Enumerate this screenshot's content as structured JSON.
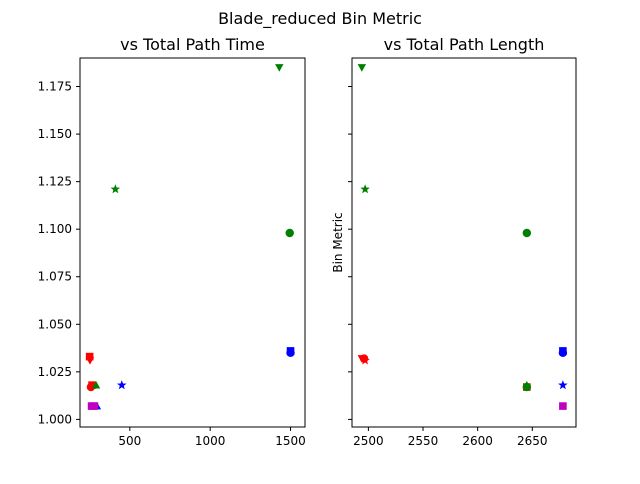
{
  "suptitle": "Blade_reduced Bin Metric",
  "colors": {
    "green": "#008000",
    "red": "#ff0000",
    "blue": "#0000ff",
    "magenta": "#bf00bf"
  },
  "chart_data": [
    {
      "type": "scatter",
      "title": "vs Total Path Time",
      "xlabel": "",
      "ylabel": "",
      "xlim": [
        190,
        1590
      ],
      "ylim": [
        0.996,
        1.19
      ],
      "xticks": [
        500,
        1000,
        1500
      ],
      "xtick_labels": [
        "500",
        "1000",
        "1500"
      ],
      "yticks": [
        1.0,
        1.025,
        1.05,
        1.075,
        1.1,
        1.125,
        1.15,
        1.175
      ],
      "ytick_labels": [
        "1.000",
        "1.025",
        "1.050",
        "1.075",
        "1.100",
        "1.125",
        "1.150",
        "1.175"
      ],
      "grid": false,
      "points": [
        {
          "x": 1430,
          "y": 1.185,
          "color": "green",
          "marker": "triangle-down"
        },
        {
          "x": 410,
          "y": 1.121,
          "color": "green",
          "marker": "star"
        },
        {
          "x": 1495,
          "y": 1.098,
          "color": "green",
          "marker": "circle"
        },
        {
          "x": 1500,
          "y": 1.036,
          "color": "blue",
          "marker": "square"
        },
        {
          "x": 1500,
          "y": 1.035,
          "color": "blue",
          "marker": "circle"
        },
        {
          "x": 450,
          "y": 1.018,
          "color": "blue",
          "marker": "star"
        },
        {
          "x": 295,
          "y": 1.007,
          "color": "blue",
          "marker": "triangle-up"
        },
        {
          "x": 250,
          "y": 1.033,
          "color": "red",
          "marker": "square"
        },
        {
          "x": 252,
          "y": 1.031,
          "color": "red",
          "marker": "triangle-down"
        },
        {
          "x": 258,
          "y": 1.017,
          "color": "red",
          "marker": "circle"
        },
        {
          "x": 265,
          "y": 1.018,
          "color": "red",
          "marker": "square"
        },
        {
          "x": 290,
          "y": 1.018,
          "color": "green",
          "marker": "triangle-up"
        },
        {
          "x": 262,
          "y": 1.007,
          "color": "magenta",
          "marker": "square"
        },
        {
          "x": 280,
          "y": 1.007,
          "color": "magenta",
          "marker": "square"
        }
      ]
    },
    {
      "type": "scatter",
      "title": "vs Total Path Length",
      "xlabel": "",
      "ylabel": "Bin Metric",
      "xlim": [
        2485,
        2690
      ],
      "ylim": [
        0.996,
        1.19
      ],
      "xticks": [
        2500,
        2550,
        2600,
        2650
      ],
      "xtick_labels": [
        "2500",
        "2550",
        "2600",
        "2650"
      ],
      "yticks": [
        1.0,
        1.025,
        1.05,
        1.075,
        1.1,
        1.125,
        1.15,
        1.175
      ],
      "ytick_labels": [],
      "grid": false,
      "points": [
        {
          "x": 2494,
          "y": 1.185,
          "color": "green",
          "marker": "triangle-down"
        },
        {
          "x": 2497,
          "y": 1.121,
          "color": "green",
          "marker": "star"
        },
        {
          "x": 2645,
          "y": 1.098,
          "color": "green",
          "marker": "circle"
        },
        {
          "x": 2678,
          "y": 1.036,
          "color": "blue",
          "marker": "square"
        },
        {
          "x": 2678,
          "y": 1.035,
          "color": "blue",
          "marker": "circle"
        },
        {
          "x": 2678,
          "y": 1.018,
          "color": "blue",
          "marker": "star"
        },
        {
          "x": 2494,
          "y": 1.032,
          "color": "red",
          "marker": "triangle-down"
        },
        {
          "x": 2496,
          "y": 1.032,
          "color": "red",
          "marker": "circle"
        },
        {
          "x": 2497,
          "y": 1.031,
          "color": "red",
          "marker": "star"
        },
        {
          "x": 2645,
          "y": 1.017,
          "color": "red",
          "marker": "square"
        },
        {
          "x": 2645,
          "y": 1.018,
          "color": "green",
          "marker": "triangle-up"
        },
        {
          "x": 2645,
          "y": 1.017,
          "color": "green",
          "marker": "circle"
        },
        {
          "x": 2678,
          "y": 1.007,
          "color": "magenta",
          "marker": "square"
        }
      ]
    }
  ]
}
